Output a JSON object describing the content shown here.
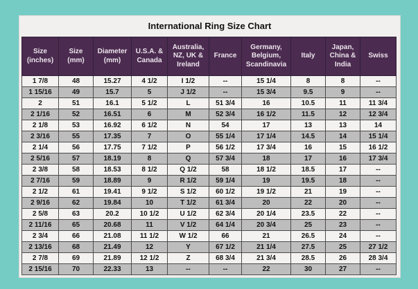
{
  "title": "International Ring Size Chart",
  "colors": {
    "page_border_background": "#74ccc5",
    "page_background": "#f1f0ee",
    "header_background": "#4b2b4f",
    "header_text": "#ece4ed",
    "row_stripe_gray": "#bdbdbd",
    "row_stripe_white": "#f3f2f0",
    "grid_line": "#4a4a4a",
    "body_text": "#111111"
  },
  "table": {
    "headers": [
      "Size (inches)",
      "Size (mm)",
      "Diameter (mm)",
      "U.S.A. & Canada",
      "Australia, NZ, UK & Ireland",
      "France",
      "Germany, Belgium, Scandinavia",
      "Italy",
      "Japan, China & India",
      "Swiss"
    ],
    "rows": [
      [
        "1 7/8",
        "48",
        "15.27",
        "4 1/2",
        "I 1/2",
        "--",
        "15 1/4",
        "8",
        "8",
        "--"
      ],
      [
        "1 15/16",
        "49",
        "15.7",
        "5",
        "J 1/2",
        "--",
        "15 3/4",
        "9.5",
        "9",
        "--"
      ],
      [
        "2",
        "51",
        "16.1",
        "5 1/2",
        "L",
        "51 3/4",
        "16",
        "10.5",
        "11",
        "11 3/4"
      ],
      [
        "2 1/16",
        "52",
        "16.51",
        "6",
        "M",
        "52 3/4",
        "16 1/2",
        "11.5",
        "12",
        "12 3/4"
      ],
      [
        "2 1/8",
        "53",
        "16.92",
        "6 1/2",
        "N",
        "54",
        "17",
        "13",
        "13",
        "14"
      ],
      [
        "2 3/16",
        "55",
        "17.35",
        "7",
        "O",
        "55 1/4",
        "17 1/4",
        "14.5",
        "14",
        "15 1/4"
      ],
      [
        "2 1/4",
        "56",
        "17.75",
        "7 1/2",
        "P",
        "56 1/2",
        "17 3/4",
        "16",
        "15",
        "16 1/2"
      ],
      [
        "2 5/16",
        "57",
        "18.19",
        "8",
        "Q",
        "57 3/4",
        "18",
        "17",
        "16",
        "17 3/4"
      ],
      [
        "2 3/8",
        "58",
        "18.53",
        "8 1/2",
        "Q 1/2",
        "58",
        "18 1/2",
        "18.5",
        "17",
        "--"
      ],
      [
        "2 7/16",
        "59",
        "18.89",
        "9",
        "R 1/2",
        "59 1/4",
        "19",
        "19.5",
        "18",
        "--"
      ],
      [
        "2 1/2",
        "61",
        "19.41",
        "9 1/2",
        "S 1/2",
        "60 1/2",
        "19 1/2",
        "21",
        "19",
        "--"
      ],
      [
        "2 9/16",
        "62",
        "19.84",
        "10",
        "T 1/2",
        "61 3/4",
        "20",
        "22",
        "20",
        "--"
      ],
      [
        "2 5/8",
        "63",
        "20.2",
        "10 1/2",
        "U 1/2",
        "62 3/4",
        "20 1/4",
        "23.5",
        "22",
        "--"
      ],
      [
        "2 11/16",
        "65",
        "20.68",
        "11",
        "V 1/2",
        "64 1/4",
        "20 3/4",
        "25",
        "23",
        "--"
      ],
      [
        "2 3/4",
        "66",
        "21.08",
        "11 1/2",
        "W 1/2",
        "66",
        "21",
        "26.5",
        "24",
        "--"
      ],
      [
        "2 13/16",
        "68",
        "21.49",
        "12",
        "Y",
        "67 1/2",
        "21 1/4",
        "27.5",
        "25",
        "27 1/2"
      ],
      [
        "2 7/8",
        "69",
        "21.89",
        "12 1/2",
        "Z",
        "68 3/4",
        "21 3/4",
        "28.5",
        "26",
        "28 3/4"
      ],
      [
        "2 15/16",
        "70",
        "22.33",
        "13",
        "--",
        "--",
        "22",
        "30",
        "27",
        "--"
      ]
    ]
  }
}
